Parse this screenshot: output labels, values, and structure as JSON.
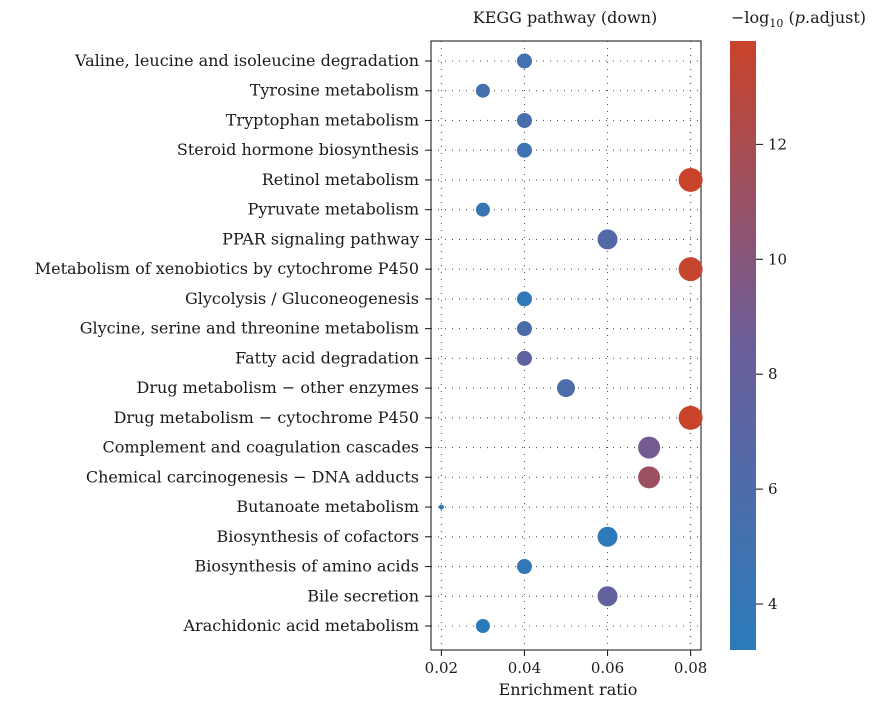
{
  "chart_data": {
    "type": "scatter",
    "title": "KEGG pathway (down)",
    "xlabel": "Enrichment ratio",
    "ylabel": "",
    "xlim": [
      0.0175,
      0.0825
    ],
    "xticks": [
      0.02,
      0.04,
      0.06,
      0.08
    ],
    "xtick_labels": [
      "0.02",
      "0.04",
      "0.06",
      "0.08"
    ],
    "grid": "dotted",
    "colorbar": {
      "title_prefix": "−log",
      "title_sub": "10",
      "title_italic": "p",
      "title_suffix": ".adjust)",
      "title_open": " (",
      "range": [
        3.2,
        13.8
      ],
      "ticks": [
        4,
        6,
        8,
        10,
        12
      ],
      "tick_labels": [
        "4",
        "6",
        "8",
        "10",
        "12"
      ],
      "color_low": "#2b7bba",
      "color_mid": "#6b5e9a",
      "color_high": "#c9432a",
      "legend_placement": "right"
    },
    "points": [
      {
        "pathway": "Valine, leucine and isoleucine degradation",
        "x": 0.04,
        "neglog10_padj": 5.2,
        "size": 7.5
      },
      {
        "pathway": "Tyrosine metabolism",
        "x": 0.03,
        "neglog10_padj": 5.3,
        "size": 7
      },
      {
        "pathway": "Tryptophan metabolism",
        "x": 0.04,
        "neglog10_padj": 5.6,
        "size": 7.5
      },
      {
        "pathway": "Steroid hormone biosynthesis",
        "x": 0.04,
        "neglog10_padj": 4.8,
        "size": 7.5
      },
      {
        "pathway": "Retinol metabolism",
        "x": 0.08,
        "neglog10_padj": 13.8,
        "size": 12
      },
      {
        "pathway": "Pyruvate metabolism",
        "x": 0.03,
        "neglog10_padj": 4.3,
        "size": 7
      },
      {
        "pathway": "PPAR signaling pathway",
        "x": 0.06,
        "neglog10_padj": 6.6,
        "size": 10
      },
      {
        "pathway": "Metabolism of xenobiotics by cytochrome P450",
        "x": 0.08,
        "neglog10_padj": 13.6,
        "size": 12
      },
      {
        "pathway": "Glycolysis / Gluconeogenesis",
        "x": 0.04,
        "neglog10_padj": 3.6,
        "size": 7.5
      },
      {
        "pathway": "Glycine, serine and threonine metabolism",
        "x": 0.04,
        "neglog10_padj": 5.8,
        "size": 7.5
      },
      {
        "pathway": "Fatty acid degradation",
        "x": 0.04,
        "neglog10_padj": 7.6,
        "size": 7.5
      },
      {
        "pathway": "Drug metabolism − other enzymes",
        "x": 0.05,
        "neglog10_padj": 5.9,
        "size": 9
      },
      {
        "pathway": "Drug metabolism − cytochrome P450",
        "x": 0.08,
        "neglog10_padj": 13.9,
        "size": 12
      },
      {
        "pathway": "Complement and coagulation cascades",
        "x": 0.07,
        "neglog10_padj": 9.0,
        "size": 11
      },
      {
        "pathway": "Chemical carcinogenesis − DNA adducts",
        "x": 0.07,
        "neglog10_padj": 11.3,
        "size": 11
      },
      {
        "pathway": "Butanoate metabolism",
        "x": 0.02,
        "neglog10_padj": 3.6,
        "size": 2.5
      },
      {
        "pathway": "Biosynthesis of cofactors",
        "x": 0.06,
        "neglog10_padj": 3.3,
        "size": 10
      },
      {
        "pathway": "Biosynthesis of amino acids",
        "x": 0.04,
        "neglog10_padj": 4.0,
        "size": 7.5
      },
      {
        "pathway": "Bile secretion",
        "x": 0.06,
        "neglog10_padj": 7.8,
        "size": 10
      },
      {
        "pathway": "Arachidonic acid metabolism",
        "x": 0.03,
        "neglog10_padj": 3.3,
        "size": 7
      }
    ]
  }
}
